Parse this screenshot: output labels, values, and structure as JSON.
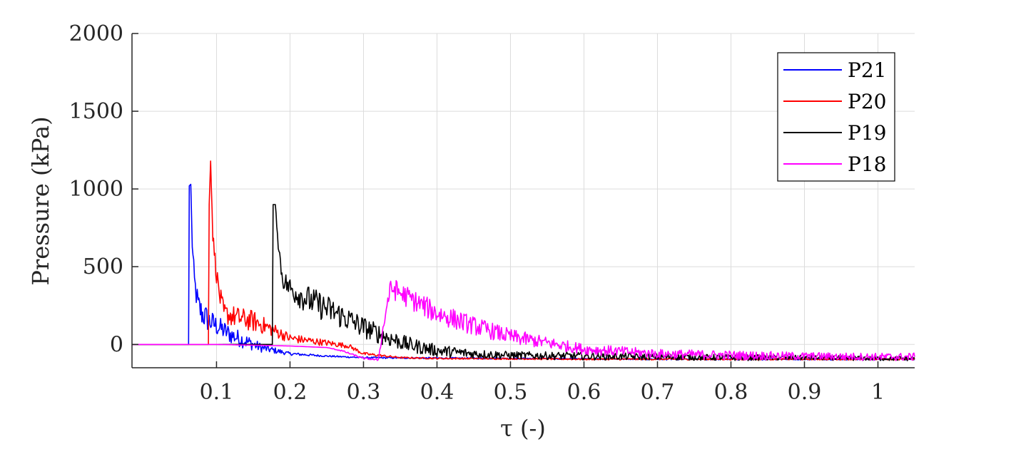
{
  "chart_data": {
    "type": "line",
    "xlabel": "τ (-)",
    "ylabel": "Pressure (kPa)",
    "xlim": [
      -0.015,
      1.05
    ],
    "ylim": [
      -150,
      2000
    ],
    "xticks": [
      0.1,
      0.2,
      0.3,
      0.4,
      0.5,
      0.6,
      0.7,
      0.8,
      0.9,
      1
    ],
    "xtick_labels": [
      "0.1",
      "0.2",
      "0.3",
      "0.4",
      "0.5",
      "0.6",
      "0.7",
      "0.8",
      "0.9",
      "1"
    ],
    "yticks": [
      0,
      500,
      1000,
      1500,
      2000
    ],
    "ytick_labels": [
      "0",
      "500",
      "1000",
      "1500",
      "2000"
    ],
    "grid": true,
    "legend_position": "top-right",
    "series": [
      {
        "name": "P21",
        "color": "#0000ff",
        "x": [
          -0.015,
          0.05,
          0.062,
          0.063,
          0.065,
          0.067,
          0.07,
          0.075,
          0.08,
          0.09,
          0.1,
          0.12,
          0.14,
          0.16,
          0.2,
          0.25,
          0.3,
          0.4,
          0.5,
          0.6,
          0.7,
          0.8,
          0.9,
          1.0,
          1.05
        ],
        "y": [
          0,
          0,
          0,
          1020,
          1030,
          640,
          400,
          250,
          200,
          150,
          120,
          60,
          20,
          -20,
          -60,
          -75,
          -85,
          -88,
          -90,
          -92,
          -95,
          -95,
          -95,
          -95,
          -95
        ],
        "noise": [
          0,
          0,
          0,
          0,
          0,
          40,
          80,
          90,
          90,
          80,
          70,
          60,
          50,
          30,
          10,
          5,
          5,
          5,
          5,
          5,
          5,
          5,
          5,
          5,
          5
        ]
      },
      {
        "name": "P20",
        "color": "#ff0000",
        "x": [
          -0.015,
          0.08,
          0.089,
          0.09,
          0.092,
          0.095,
          0.1,
          0.105,
          0.11,
          0.13,
          0.15,
          0.17,
          0.2,
          0.25,
          0.28,
          0.3,
          0.35,
          0.4,
          0.5,
          0.6,
          0.7,
          0.8,
          0.9,
          1.0,
          1.05
        ],
        "y": [
          0,
          0,
          0,
          900,
          1180,
          700,
          450,
          300,
          200,
          170,
          150,
          110,
          40,
          10,
          -10,
          -60,
          -85,
          -90,
          -92,
          -95,
          -95,
          -95,
          -95,
          -95,
          -95
        ],
        "noise": [
          0,
          0,
          0,
          0,
          0,
          40,
          60,
          70,
          70,
          70,
          70,
          50,
          30,
          20,
          15,
          10,
          5,
          5,
          5,
          5,
          5,
          5,
          5,
          5,
          5
        ]
      },
      {
        "name": "P19",
        "color": "#000000",
        "x": [
          -0.015,
          0.17,
          0.176,
          0.177,
          0.18,
          0.185,
          0.19,
          0.2,
          0.22,
          0.25,
          0.28,
          0.3,
          0.33,
          0.36,
          0.4,
          0.45,
          0.5,
          0.6,
          0.7,
          0.8,
          0.9,
          1.0,
          1.05
        ],
        "y": [
          0,
          0,
          0,
          900,
          900,
          600,
          420,
          360,
          300,
          230,
          160,
          110,
          50,
          0,
          -40,
          -60,
          -70,
          -75,
          -80,
          -85,
          -85,
          -90,
          -90
        ],
        "noise": [
          0,
          0,
          0,
          0,
          0,
          60,
          60,
          80,
          90,
          90,
          80,
          70,
          60,
          50,
          40,
          30,
          25,
          25,
          20,
          20,
          15,
          15,
          15
        ]
      },
      {
        "name": "P18",
        "color": "#ff00ff",
        "x": [
          -0.015,
          0.1,
          0.2,
          0.25,
          0.27,
          0.3,
          0.32,
          0.33,
          0.335,
          0.34,
          0.35,
          0.4,
          0.45,
          0.5,
          0.55,
          0.6,
          0.7,
          0.8,
          0.9,
          1.0,
          1.05
        ],
        "y": [
          0,
          0,
          -10,
          -20,
          -40,
          -90,
          -100,
          200,
          330,
          360,
          330,
          200,
          120,
          50,
          10,
          -30,
          -60,
          -70,
          -75,
          -80,
          -80
        ],
        "noise": [
          0,
          0,
          0,
          0,
          5,
          5,
          5,
          50,
          70,
          70,
          70,
          70,
          60,
          50,
          40,
          35,
          30,
          30,
          25,
          25,
          25
        ]
      }
    ]
  }
}
